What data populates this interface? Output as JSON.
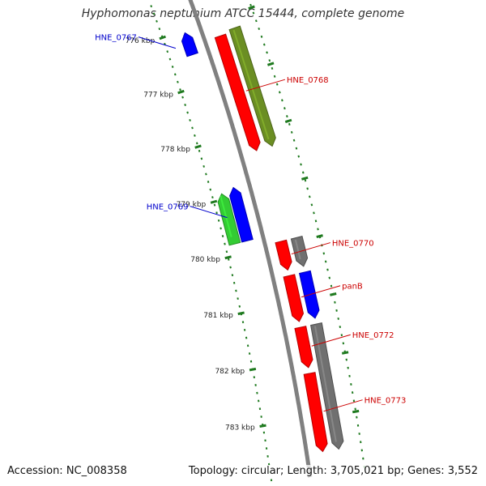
{
  "title": "Hyphomonas neptunium ATCC 15444, complete genome",
  "footer": {
    "accession": "Accession: NC_008358",
    "stats": "Topology: circular; Length: 3,705,021 bp; Genes: 3,552"
  },
  "colors": {
    "backbone": "#808080",
    "tick": "#1f7a1f",
    "forward_label": "#cc0000",
    "reverse_label": "#0000cc",
    "red": "#ff0000",
    "olive": "#6b8e23",
    "blue": "#0000ff",
    "green": "#33cc33",
    "gray": "#707070"
  },
  "ticks": [
    {
      "kbp": 776,
      "label": "776 kbp"
    },
    {
      "kbp": 777,
      "label": "777 kbp"
    },
    {
      "kbp": 778,
      "label": "778 kbp"
    },
    {
      "kbp": 779,
      "label": "779 kbp"
    },
    {
      "kbp": 780,
      "label": "780 kbp"
    },
    {
      "kbp": 781,
      "label": "781 kbp"
    },
    {
      "kbp": 782,
      "label": "782 kbp"
    },
    {
      "kbp": 783,
      "label": "783 kbp"
    }
  ],
  "genes": [
    {
      "id": "g-767",
      "label": "HNE_0767",
      "strand": "reverse",
      "start_kbp": 776.05,
      "end_kbp": 776.45,
      "ring": "inner-1",
      "color": "blue",
      "labeled": true
    },
    {
      "id": "g-768",
      "label": "HNE_0768",
      "strand": "forward",
      "start_kbp": 776.3,
      "end_kbp": 778.35,
      "ring": "outer-1",
      "color": "red",
      "labeled": true
    },
    {
      "id": "g-768b",
      "label": "",
      "strand": "forward",
      "start_kbp": 776.25,
      "end_kbp": 778.35,
      "ring": "outer-2",
      "color": "olive",
      "labeled": false
    },
    {
      "id": "g-769",
      "label": "HNE_0769",
      "strand": "reverse",
      "start_kbp": 778.85,
      "end_kbp": 779.8,
      "ring": "inner-1",
      "color": "blue",
      "labeled": true
    },
    {
      "id": "g-769b",
      "label": "",
      "strand": "reverse",
      "start_kbp": 778.9,
      "end_kbp": 779.8,
      "ring": "inner-2",
      "color": "green",
      "labeled": false
    },
    {
      "id": "g-770",
      "label": "HNE_0770",
      "strand": "forward",
      "start_kbp": 779.95,
      "end_kbp": 780.45,
      "ring": "outer-1",
      "color": "red",
      "labeled": true
    },
    {
      "id": "g-770b",
      "label": "",
      "strand": "forward",
      "start_kbp": 779.95,
      "end_kbp": 780.45,
      "ring": "outer-2",
      "color": "gray",
      "labeled": false
    },
    {
      "id": "g-panB",
      "label": "panB",
      "strand": "forward",
      "start_kbp": 780.55,
      "end_kbp": 781.35,
      "ring": "outer-1",
      "color": "red",
      "labeled": true
    },
    {
      "id": "g-panBb",
      "label": "",
      "strand": "forward",
      "start_kbp": 780.55,
      "end_kbp": 781.35,
      "ring": "outer-2",
      "color": "blue",
      "labeled": false
    },
    {
      "id": "g-772",
      "label": "HNE_0772",
      "strand": "forward",
      "start_kbp": 781.45,
      "end_kbp": 782.15,
      "ring": "outer-1",
      "color": "red",
      "labeled": true
    },
    {
      "id": "g-773",
      "label": "HNE_0773",
      "strand": "forward",
      "start_kbp": 782.25,
      "end_kbp": 783.6,
      "ring": "outer-1",
      "color": "red",
      "labeled": true
    },
    {
      "id": "g-773b",
      "label": "",
      "strand": "forward",
      "start_kbp": 781.45,
      "end_kbp": 783.6,
      "ring": "outer-2",
      "color": "gray",
      "labeled": false
    }
  ]
}
